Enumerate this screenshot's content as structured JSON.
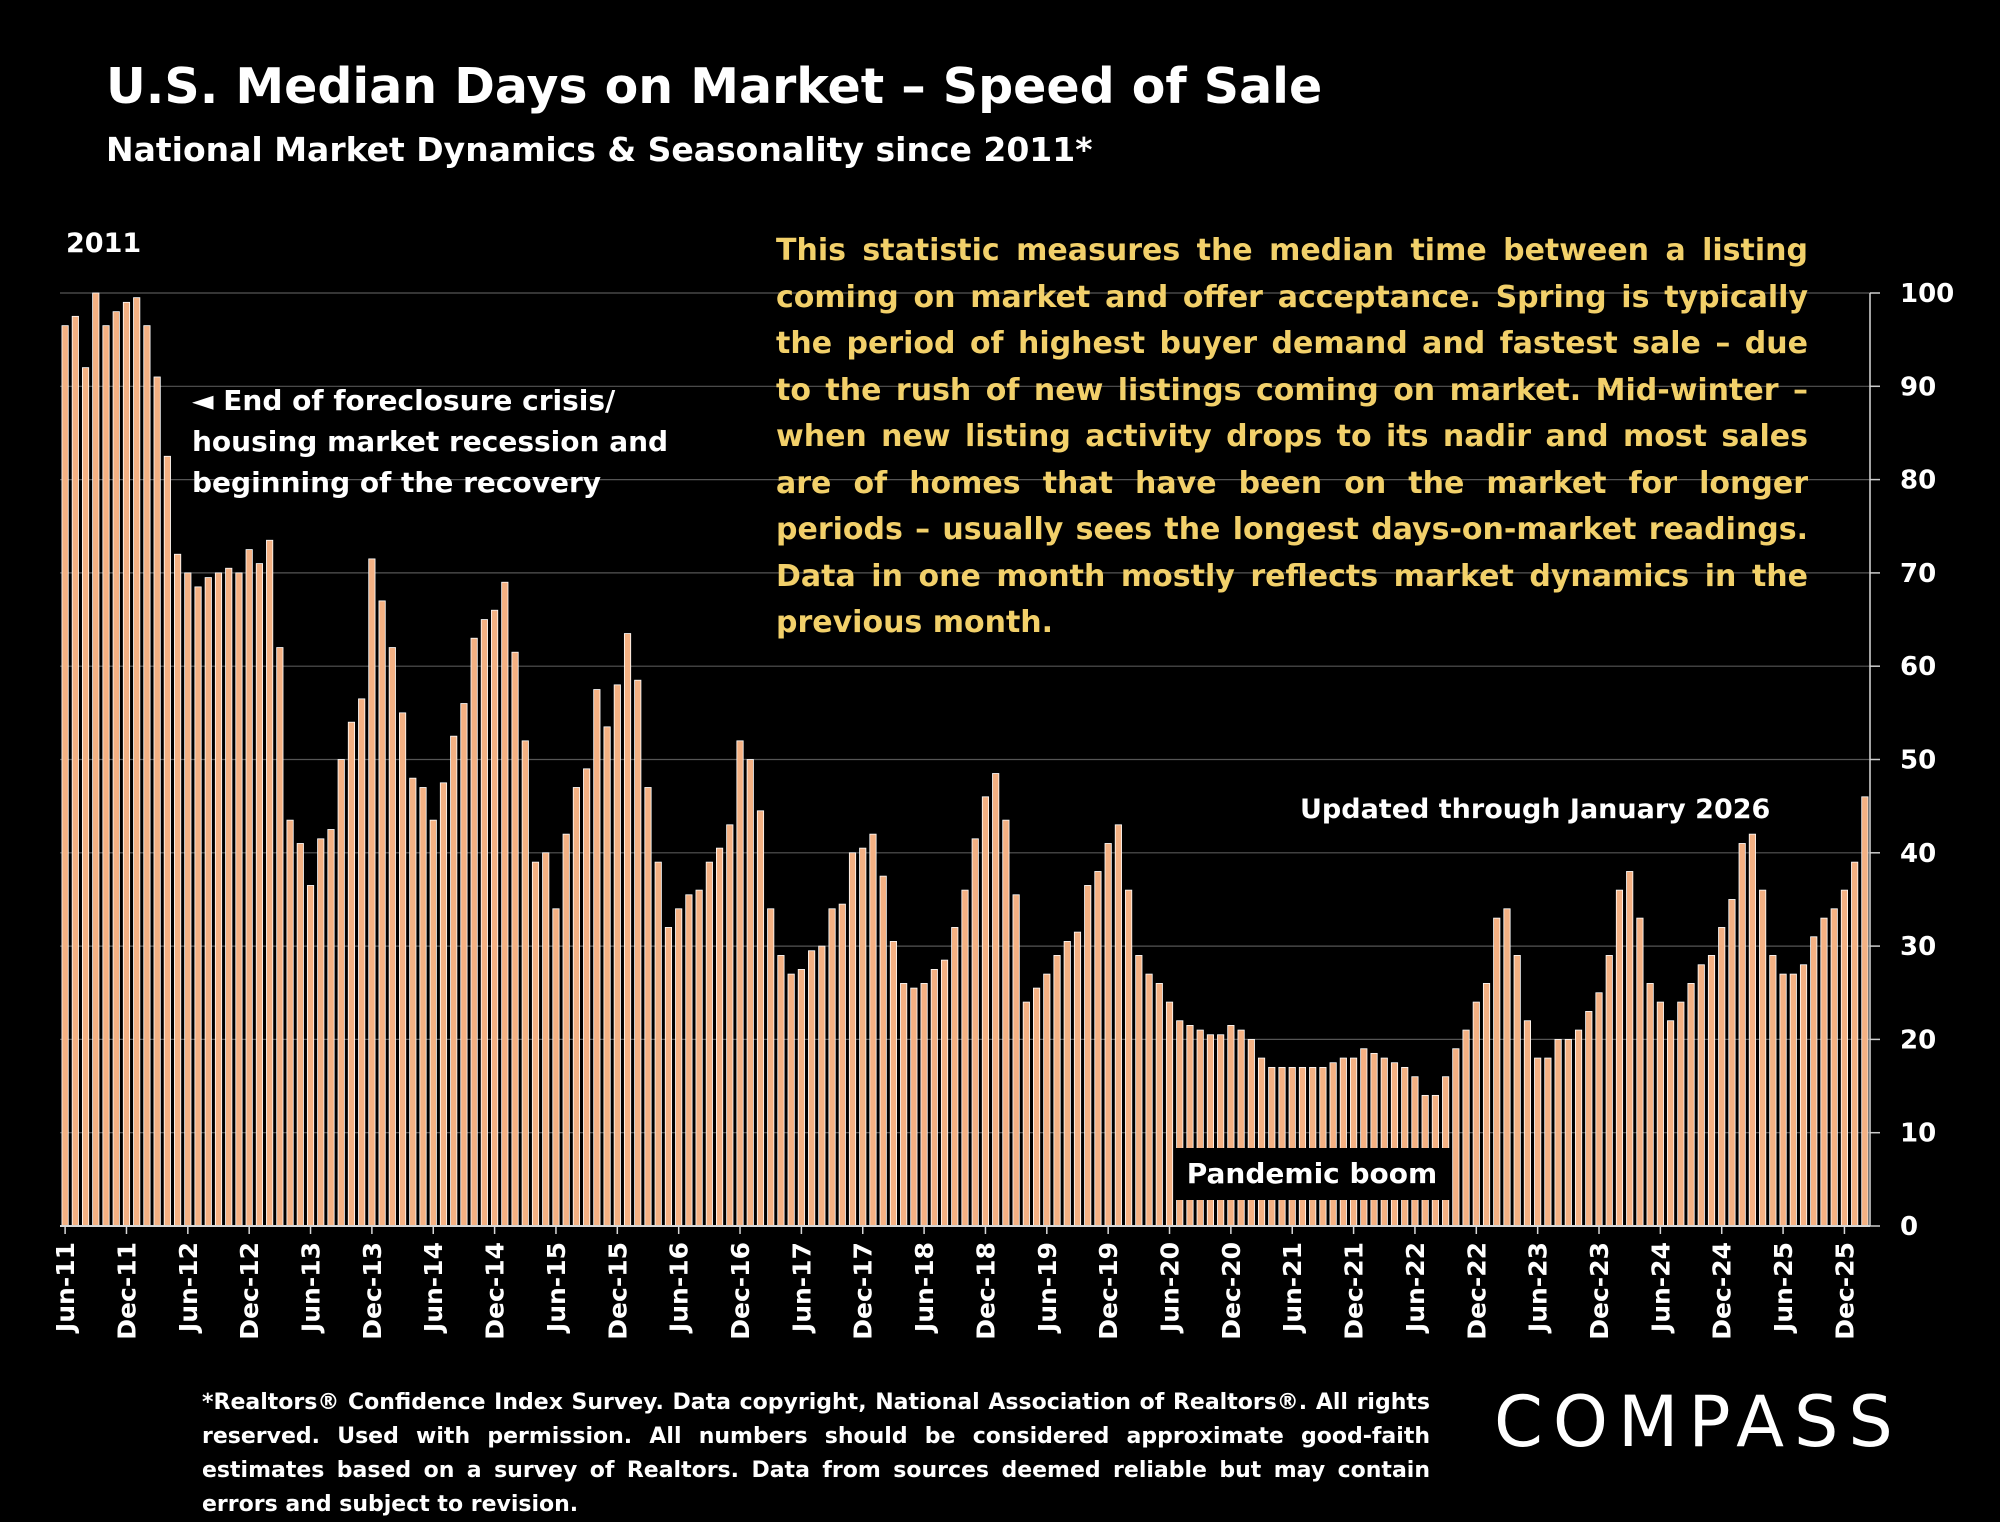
{
  "title": "U.S. Median Days on Market – Speed of Sale",
  "subtitle": "National Market Dynamics & Seasonality since 2011*",
  "note": "This statistic measures the median time between a listing coming on market and offer acceptance. Spring is typically the period of highest buyer demand and fastest sale – due to the rush of new listings coming on market. Mid-winter – when new listing activity drops to its nadir and most sales are of homes that have been on the market for longer periods – usually sees the longest days-on-market readings. Data in one month mostly reflects market dynamics in the previous month.",
  "footnote": "*Realtors® Confidence Index Survey. Data copyright, National Association of Realtors®. All rights reserved. Used with permission. All numbers should be considered approximate good-faith estimates based on a survey of Realtors. Data from sources deemed reliable but may contain errors and subject to revision.",
  "logo_text": "COMPASS",
  "colors": {
    "bar_fill": "#f4b183",
    "bar_edge": "#ffffff",
    "note_text": "#f2d06a",
    "background": "#000000",
    "grid": "#555555"
  },
  "chart_data": {
    "type": "bar",
    "title": "U.S. Median Days on Market – Speed of Sale",
    "ylim": [
      0,
      100
    ],
    "y_ticks": [
      0,
      10,
      20,
      30,
      40,
      50,
      60,
      70,
      80,
      90,
      100
    ],
    "y_axis_side": "right",
    "grid": true,
    "x_ticks": [
      "Jun-11",
      "Dec-11",
      "Jun-12",
      "Dec-12",
      "Jun-13",
      "Dec-13",
      "Jun-14",
      "Dec-14",
      "Jun-15",
      "Dec-15",
      "Jun-16",
      "Dec-16",
      "Jun-17",
      "Dec-17",
      "Jun-18",
      "Dec-18",
      "Jun-19",
      "Dec-19",
      "Jun-20",
      "Dec-20",
      "Jun-21",
      "Dec-21",
      "Jun-22",
      "Dec-22",
      "Jun-23",
      "Dec-23",
      "Jun-24",
      "Dec-24",
      "Jun-25",
      "Dec-25"
    ],
    "x_start": "Jun-11",
    "x_end": "Jan-26",
    "values": [
      96.5,
      97.5,
      92,
      100,
      96.5,
      98,
      99,
      99.5,
      96.5,
      91,
      82.5,
      72,
      70,
      68.5,
      69.5,
      70,
      70.5,
      70,
      72.5,
      71,
      73.5,
      62,
      43.5,
      41,
      36.5,
      41.5,
      42.5,
      50,
      54,
      56.5,
      71.5,
      67,
      62,
      55,
      48,
      47,
      43.5,
      47.5,
      52.5,
      56,
      63,
      65,
      66,
      69,
      61.5,
      52,
      39,
      40,
      34,
      42,
      47,
      49,
      57.5,
      53.5,
      58,
      63.5,
      58.5,
      47,
      39,
      32,
      34,
      35.5,
      36,
      39,
      40.5,
      43,
      52,
      50,
      44.5,
      34,
      29,
      27,
      27.5,
      29.5,
      30,
      34,
      34.5,
      40,
      40.5,
      42,
      37.5,
      30.5,
      26,
      25.5,
      26,
      27.5,
      28.5,
      32,
      36,
      41.5,
      46,
      48.5,
      43.5,
      35.5,
      24,
      25.5,
      27,
      29,
      30.5,
      31.5,
      36.5,
      38,
      41,
      43,
      36,
      29,
      27,
      26,
      24,
      22,
      21.5,
      21,
      20.5,
      20.5,
      21.5,
      21,
      20,
      18,
      17,
      17,
      17,
      17,
      17,
      17,
      17.5,
      18,
      18,
      19,
      18.5,
      18,
      17.5,
      17,
      16,
      14,
      14,
      16,
      19,
      21,
      24,
      26,
      33,
      34,
      29,
      22,
      18,
      18,
      20,
      20,
      21,
      23,
      25,
      29,
      36,
      38,
      33,
      26,
      24,
      22,
      24,
      26,
      28,
      29,
      32,
      35,
      41,
      42,
      36,
      29,
      27,
      27,
      28,
      31,
      33,
      34,
      36,
      39,
      46
    ]
  },
  "annotations": {
    "year_label": "2011",
    "foreclosure_arrow": "◄",
    "foreclosure_line1": "End of foreclosure crisis/",
    "foreclosure_line2": "housing market recession and",
    "foreclosure_line3": "beginning of the recovery",
    "updated": "Updated through January 2026",
    "pandemic": "Pandemic boom"
  }
}
